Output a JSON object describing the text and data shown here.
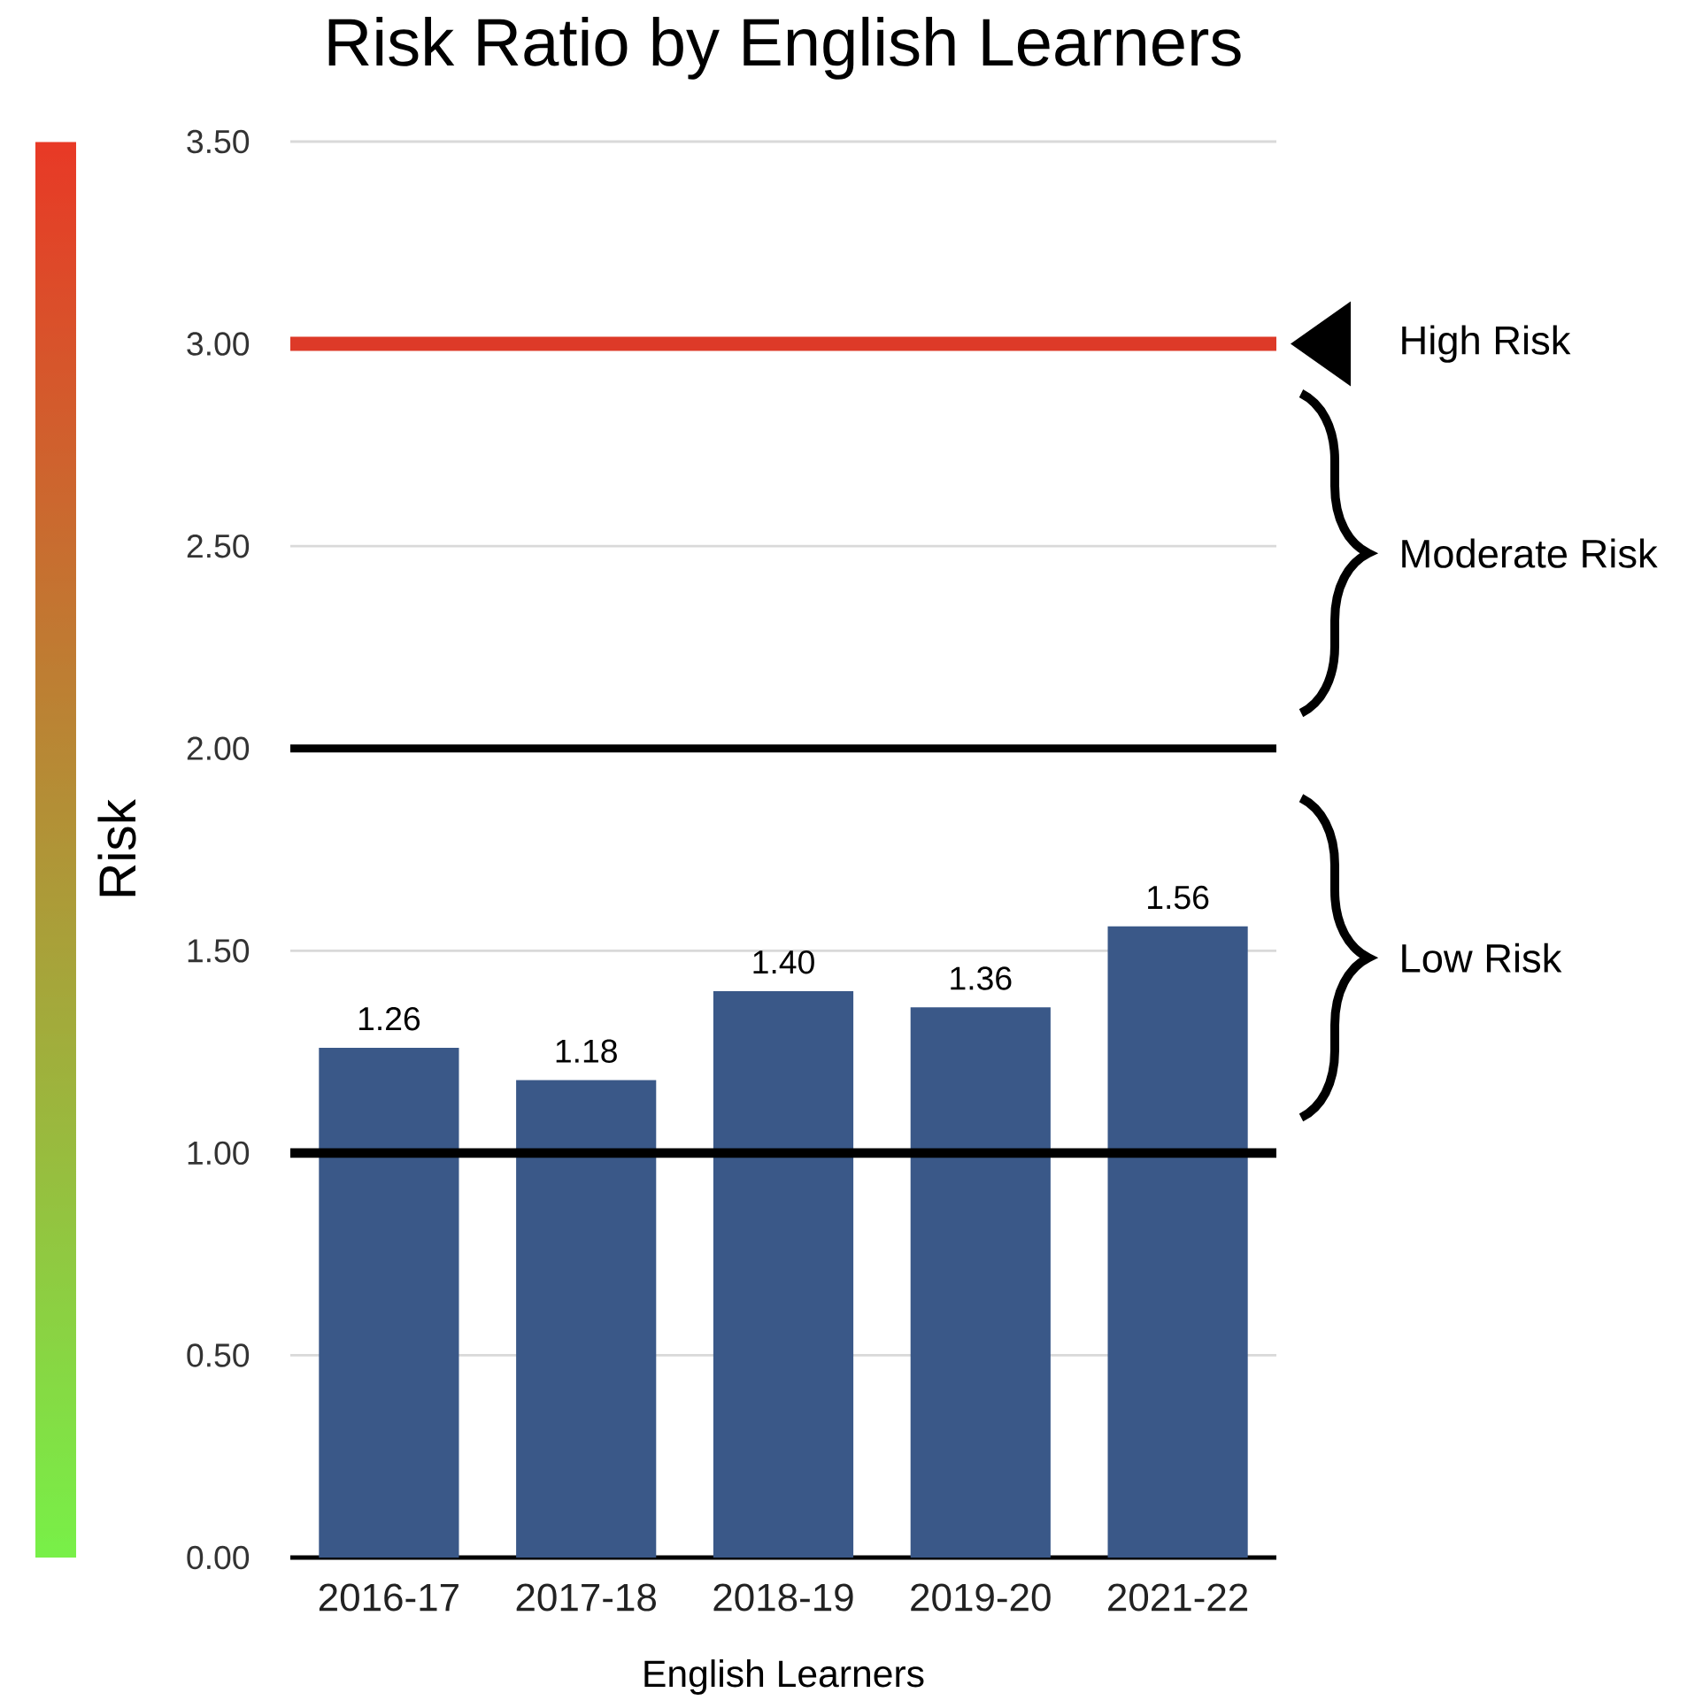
{
  "chart_data": {
    "type": "bar",
    "title": "Risk Ratio by English Learners",
    "xlabel": "English Learners",
    "ylabel": "Risk",
    "categories": [
      "2016-17",
      "2017-18",
      "2018-19",
      "2019-20",
      "2021-22"
    ],
    "values": [
      1.26,
      1.18,
      1.4,
      1.36,
      1.56
    ],
    "color": "#3a5888",
    "value_labels": [
      "1.26",
      "1.18",
      "1.40",
      "1.36",
      "1.56"
    ],
    "ylim": [
      0,
      3.5
    ],
    "yticks": [
      {
        "value": 0,
        "label": "0.00"
      },
      {
        "value": 0.5,
        "label": "0.50"
      },
      {
        "value": 1,
        "label": "1.00"
      },
      {
        "value": 1.5,
        "label": "1.50"
      },
      {
        "value": 2,
        "label": "2.00"
      },
      {
        "value": 2.5,
        "label": "2.50"
      },
      {
        "value": 3,
        "label": "3.00"
      },
      {
        "value": 3.5,
        "label": "3.50"
      }
    ],
    "grid": "y",
    "ref_lines": [
      {
        "axis": "y",
        "value": 3,
        "color": "#dd3a28"
      },
      {
        "axis": "y",
        "value": 2,
        "color": "#000000"
      },
      {
        "axis": "y",
        "value": 1,
        "color": "#000000"
      }
    ],
    "annotations": [
      "High Risk",
      "Moderate Risk",
      "Low Risk"
    ]
  }
}
